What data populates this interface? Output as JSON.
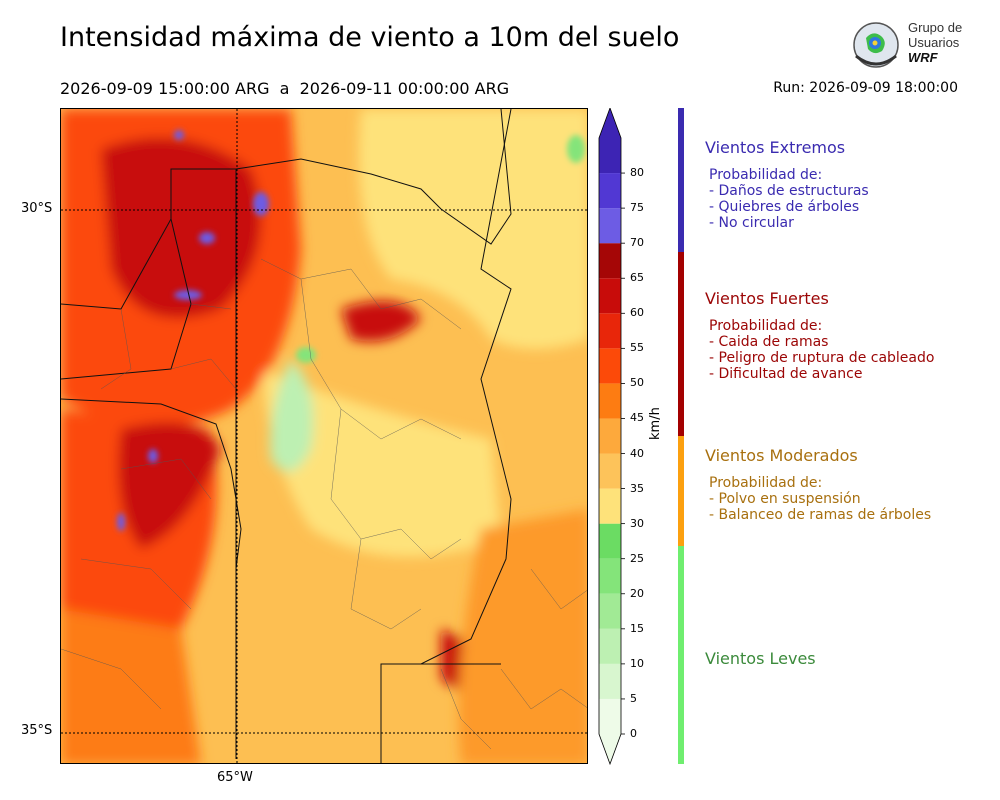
{
  "title": "Intensidad máxima de viento a 10m del suelo",
  "period": "2026-09-09 15:00:00 ARG  a  2026-09-11 00:00:00 ARG",
  "run": "Run: 2026-09-09 18:00:00",
  "logo": {
    "line1": "Grupo de",
    "line2": "Usuarios",
    "line3": "WRF"
  },
  "map": {
    "lat_labels": [
      "30°S",
      "35°S"
    ],
    "lon_labels": [
      "65°W"
    ]
  },
  "colorbar": {
    "unit": "km/h",
    "ticks": [
      "0",
      "5",
      "10",
      "15",
      "20",
      "25",
      "30",
      "35",
      "40",
      "45",
      "50",
      "55",
      "60",
      "65",
      "70",
      "75",
      "80"
    ],
    "colors": [
      "#eefbe8",
      "#d8f6cf",
      "#bdf0b2",
      "#a1ea95",
      "#84e47a",
      "#6bdc63",
      "#fee27a",
      "#fdc35a",
      "#fda93c",
      "#fd7c12",
      "#fc4a09",
      "#e8260a",
      "#c80c0a",
      "#a50606",
      "#6d5ce4",
      "#5138d3",
      "#3d24b4"
    ]
  },
  "categories": [
    {
      "title": "Vientos Extremos",
      "color": "#3a2bb0",
      "bar": "#3a2bb0",
      "lines": [
        "Probabilidad de:",
        "- Daños de estructuras",
        "- Quiebres de árboles",
        "- No circular"
      ]
    },
    {
      "title": "Vientos Fuertes",
      "color": "#9b0505",
      "bar": "#a30000",
      "lines": [
        "Probabilidad de:",
        "- Caida de ramas",
        "- Peligro de ruptura de cableado",
        "- Dificultad de avance"
      ]
    },
    {
      "title": "Vientos Moderados",
      "color": "#a8700f",
      "bar": "#fca00f",
      "lines": [
        "Probabilidad de:",
        "- Polvo en suspensión",
        "- Balanceo de ramas de árboles"
      ]
    },
    {
      "title": "Vientos Leves",
      "color": "#3b8a3b",
      "bar": "#6fee6f",
      "lines": []
    }
  ]
}
